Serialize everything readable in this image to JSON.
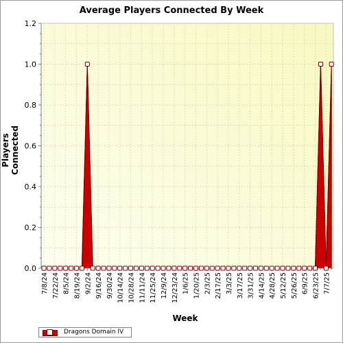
{
  "chart_data": {
    "type": "area",
    "title": "Average Players Connected By Week",
    "xlabel": "Week",
    "ylabel": "Players Connected",
    "ylim": [
      0,
      1.2
    ],
    "yticks": [
      "0.0",
      "0.2",
      "0.4",
      "0.6",
      "0.8",
      "1.0",
      "1.2"
    ],
    "grid": true,
    "legend_placement": "bottom-left",
    "colors": {
      "fill": "#cc0000",
      "stroke": "#700000",
      "plot_bg_light": "#fdfde6",
      "plot_bg_dark": "#f8f8c0"
    },
    "x": [
      "7/8/24",
      "7/15/24",
      "7/22/24",
      "7/29/24",
      "8/5/24",
      "8/12/24",
      "8/19/24",
      "8/26/24",
      "9/2/24",
      "9/9/24",
      "9/16/24",
      "9/23/24",
      "9/30/24",
      "10/7/24",
      "10/14/24",
      "10/21/24",
      "10/28/24",
      "11/4/24",
      "11/11/24",
      "11/18/24",
      "11/25/24",
      "12/2/24",
      "12/9/24",
      "12/16/24",
      "12/23/24",
      "12/30/24",
      "1/6/25",
      "1/13/25",
      "1/20/25",
      "1/27/25",
      "2/3/25",
      "2/10/25",
      "2/17/25",
      "2/24/25",
      "3/3/25",
      "3/10/25",
      "3/17/25",
      "3/24/25",
      "3/31/25",
      "4/7/25",
      "4/14/25",
      "4/21/25",
      "4/28/25",
      "5/5/25",
      "5/12/25",
      "5/19/25",
      "5/26/25",
      "6/2/25",
      "6/9/25",
      "6/16/25",
      "6/23/25",
      "6/30/25",
      "7/7/25",
      "7/14/25"
    ],
    "xtick_labels": [
      "7/8/24",
      "7/22/24",
      "8/5/24",
      "8/19/24",
      "9/2/24",
      "9/16/24",
      "9/30/24",
      "10/14/24",
      "10/28/24",
      "11/11/24",
      "11/25/24",
      "12/9/24",
      "12/23/24",
      "1/6/25",
      "1/20/25",
      "2/3/25",
      "2/17/25",
      "3/3/25",
      "3/17/25",
      "3/31/25",
      "4/14/25",
      "4/28/25",
      "5/12/25",
      "5/26/25",
      "6/9/25",
      "6/23/25",
      "7/7/25"
    ],
    "series": [
      {
        "name": "Dragons Domain IV",
        "values": [
          0,
          0,
          0,
          0,
          0,
          0,
          0,
          0,
          1,
          0,
          0,
          0,
          0,
          0,
          0,
          0,
          0,
          0,
          0,
          0,
          0,
          0,
          0,
          0,
          0,
          0,
          0,
          0,
          0,
          0,
          0,
          0,
          0,
          0,
          0,
          0,
          0,
          0,
          0,
          0,
          0,
          0,
          0,
          0,
          0,
          0,
          0,
          0,
          0,
          0,
          0,
          1,
          0,
          1
        ]
      }
    ]
  }
}
